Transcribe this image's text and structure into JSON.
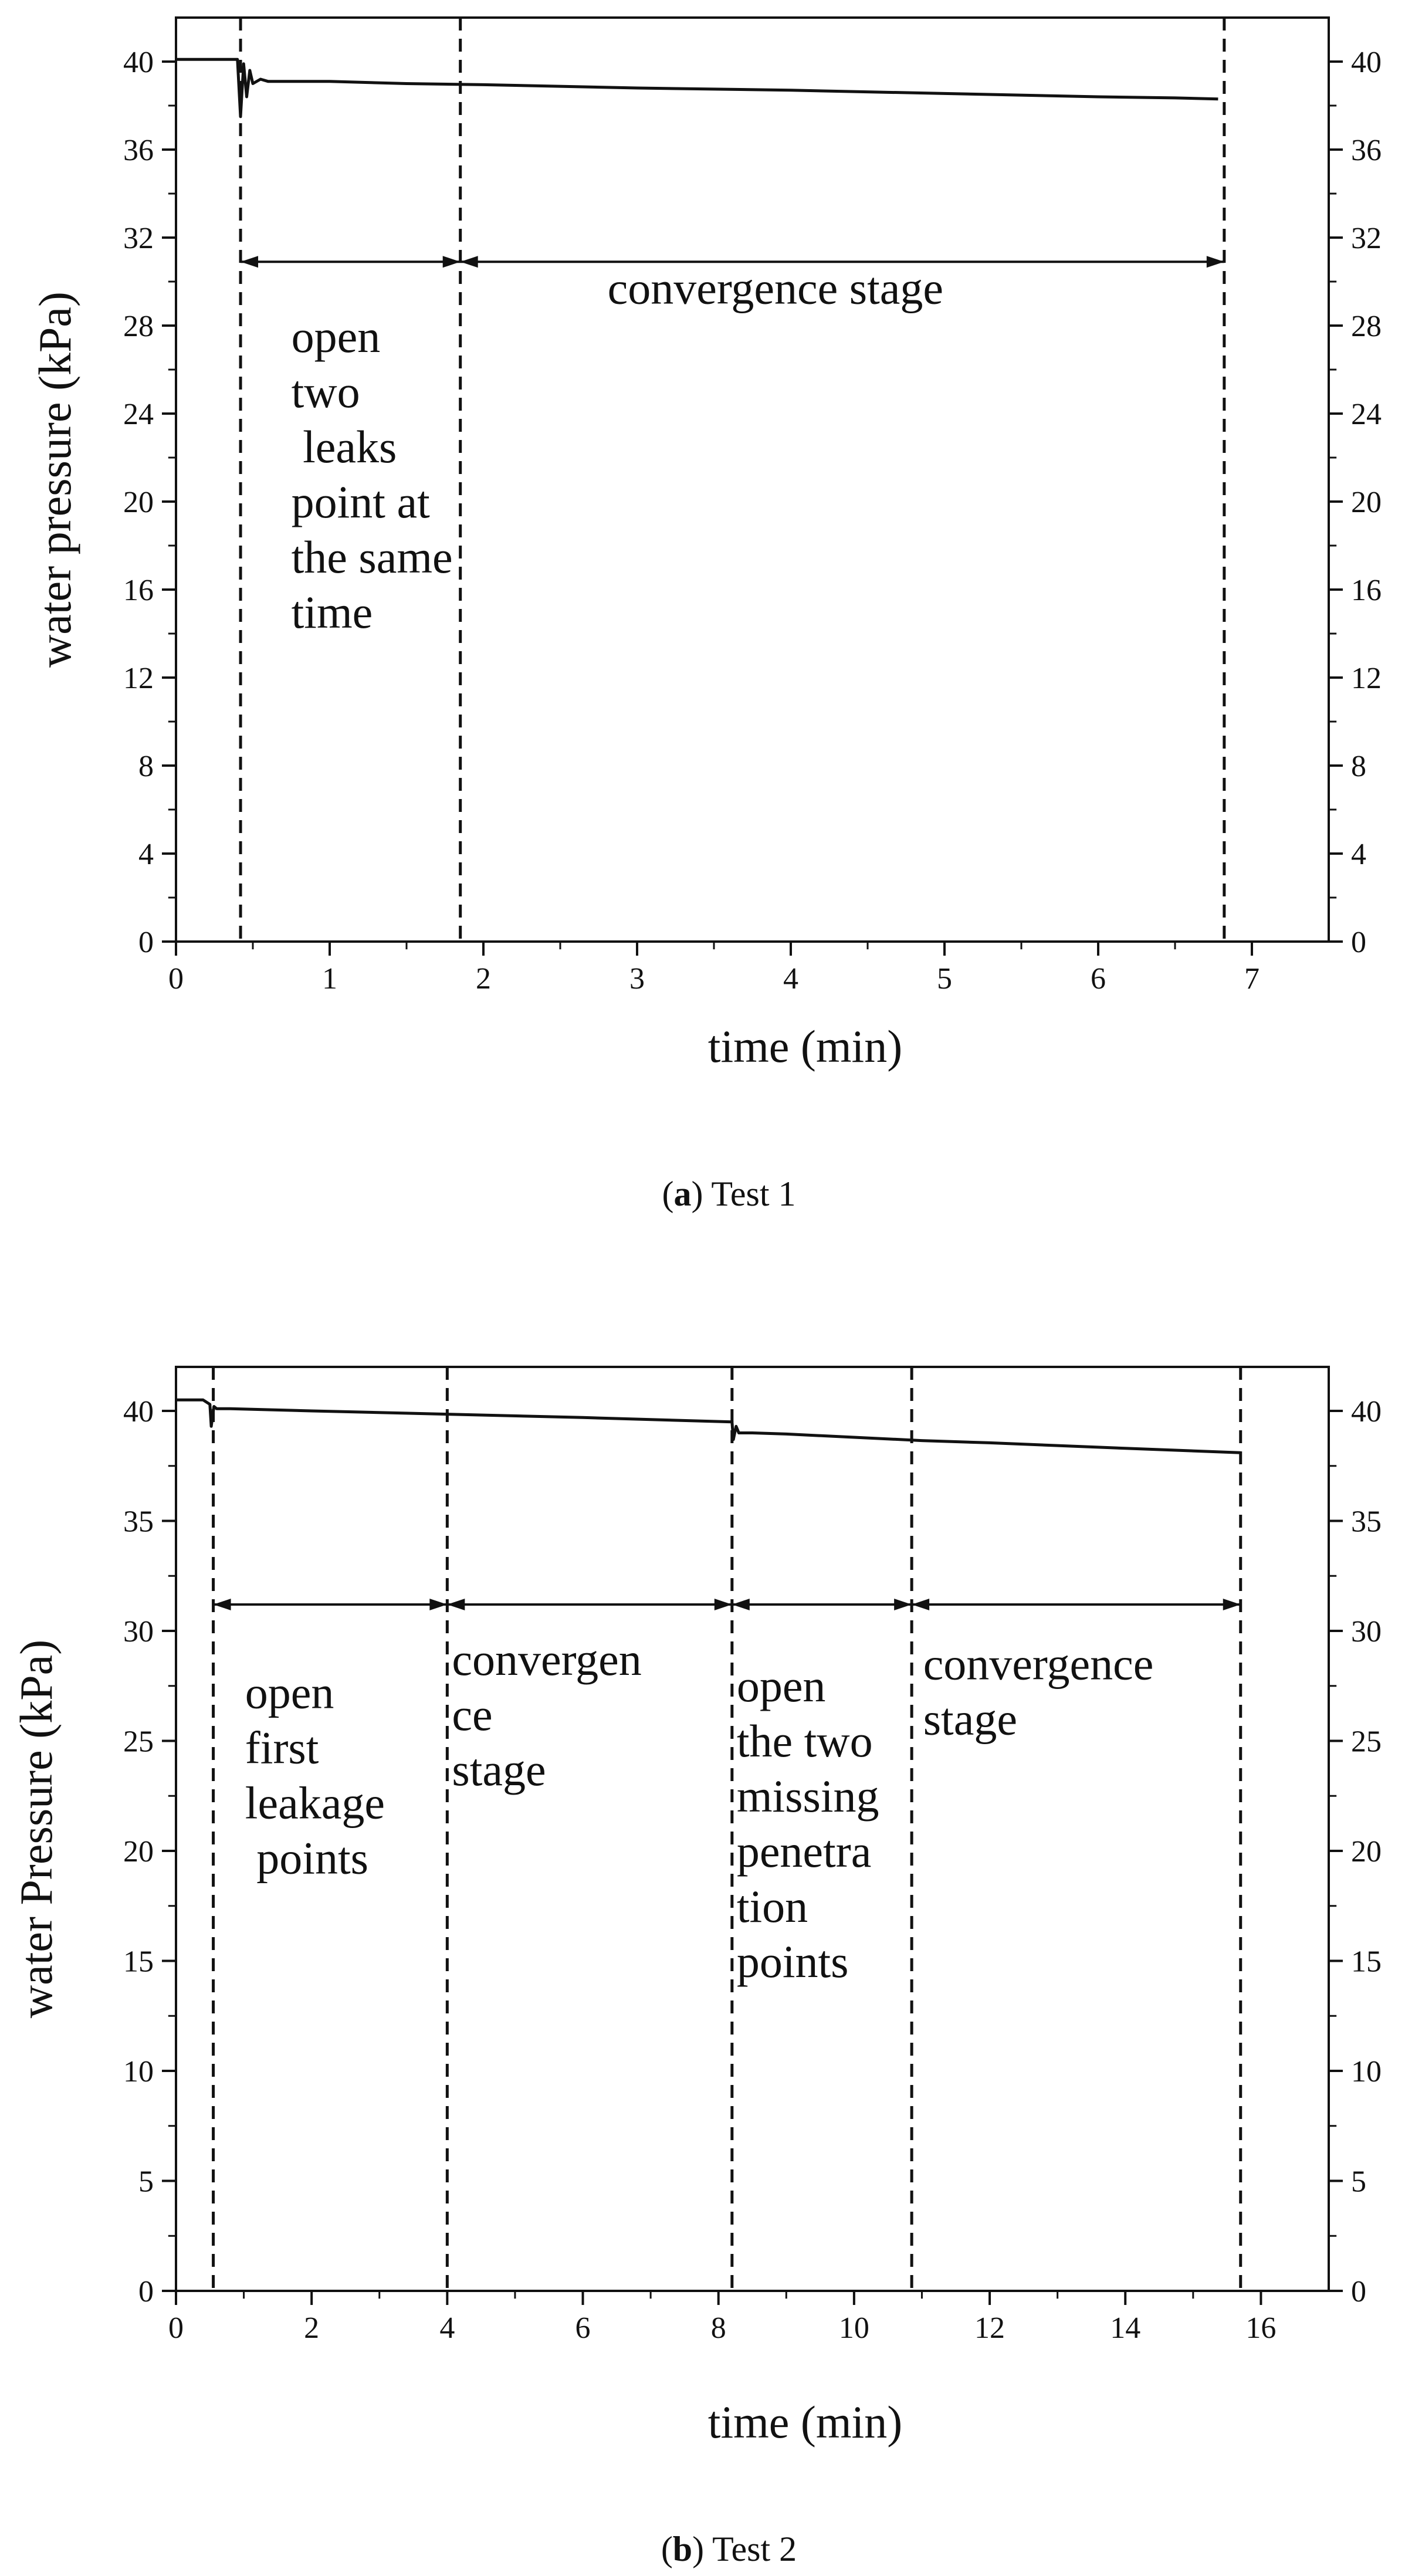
{
  "charts": [
    {
      "type": "line",
      "caption_tag": "a",
      "caption_text": " Test 1",
      "xlabel": "time (min)",
      "ylabel": "water pressure (kPa)",
      "xlim": [
        0,
        7.5
      ],
      "ylim": [
        0,
        42
      ],
      "x_ticks": [
        "0",
        "1",
        "2",
        "3",
        "4",
        "5",
        "6",
        "7"
      ],
      "y_ticks": [
        "0",
        "4",
        "8",
        "12",
        "16",
        "20",
        "24",
        "28",
        "32",
        "36",
        "40"
      ],
      "right_axis_ticks": [
        "0",
        "4",
        "8",
        "12",
        "16",
        "20",
        "24",
        "28",
        "32",
        "36",
        "40"
      ],
      "series": [
        {
          "x": [
            0,
            0.4,
            0.42,
            0.44,
            0.46,
            0.48,
            0.5,
            0.55,
            0.6,
            0.8,
            1.0,
            1.5,
            2.0,
            3.0,
            4.0,
            5.0,
            6.0,
            6.5,
            6.78
          ],
          "y": [
            40.1,
            40.1,
            37.5,
            39.9,
            38.4,
            39.6,
            39.0,
            39.2,
            39.1,
            39.1,
            39.1,
            39.0,
            38.95,
            38.8,
            38.7,
            38.55,
            38.4,
            38.35,
            38.3
          ]
        }
      ],
      "vlines": [
        0.42,
        1.85,
        6.82
      ],
      "arrow_y": 30.9,
      "arrows": [
        [
          0.42,
          1.85
        ],
        [
          1.85,
          6.82
        ]
      ],
      "annotations": [
        {
          "lines": [
            "convergence stage"
          ],
          "x": 3.9,
          "y": 29.0
        },
        {
          "lines": [
            "open",
            "two",
            " leaks",
            "point at",
            "the same",
            "time"
          ],
          "x": 0.72,
          "y": 26.8,
          "align": "start"
        }
      ]
    },
    {
      "type": "line",
      "caption_tag": "b",
      "caption_text": " Test 2",
      "xlabel": "time (min)",
      "ylabel": "water Pressure (kPa)",
      "xlim": [
        0,
        17
      ],
      "ylim": [
        0,
        42
      ],
      "x_ticks": [
        "0",
        "2",
        "4",
        "6",
        "8",
        "10",
        "12",
        "14",
        "16"
      ],
      "y_ticks": [
        "0",
        "5",
        "10",
        "15",
        "20",
        "25",
        "30",
        "35",
        "40"
      ],
      "right_axis_ticks": [
        "0",
        "5",
        "10",
        "15",
        "20",
        "25",
        "30",
        "35",
        "40"
      ],
      "series": [
        {
          "x": [
            0,
            0.4,
            0.5,
            0.52,
            0.56,
            0.6,
            0.8,
            2.0,
            4.0,
            6.0,
            8.2,
            8.22,
            8.26,
            8.3,
            8.5,
            9.0,
            10.0,
            11.0,
            12.0,
            14.0,
            15.7
          ],
          "y": [
            40.5,
            40.5,
            40.3,
            39.3,
            40.2,
            40.1,
            40.1,
            40.0,
            39.85,
            39.7,
            39.5,
            38.7,
            39.3,
            39.0,
            39.0,
            38.95,
            38.8,
            38.65,
            38.55,
            38.3,
            38.1
          ]
        }
      ],
      "vlines": [
        0.55,
        4.0,
        8.2,
        10.85,
        15.7
      ],
      "arrow_y": 31.2,
      "arrows": [
        [
          0.55,
          4.0
        ],
        [
          4.0,
          8.2
        ],
        [
          8.2,
          10.85
        ],
        [
          10.85,
          15.7
        ]
      ],
      "annotations": [
        {
          "lines": [
            "open",
            "first",
            "leakage",
            " points"
          ],
          "x": 0.95,
          "y": 26.5,
          "align": "start"
        },
        {
          "lines": [
            "convergen",
            "ce",
            "stage"
          ],
          "x": 4.0,
          "y": 28.0,
          "align": "start"
        },
        {
          "lines": [
            "open",
            "the two",
            "missing",
            "penetra",
            "tion",
            "points"
          ],
          "x": 8.2,
          "y": 26.8,
          "align": "start"
        },
        {
          "lines": [
            "convergence",
            "stage"
          ],
          "x": 10.95,
          "y": 27.8,
          "align": "start"
        }
      ]
    }
  ]
}
